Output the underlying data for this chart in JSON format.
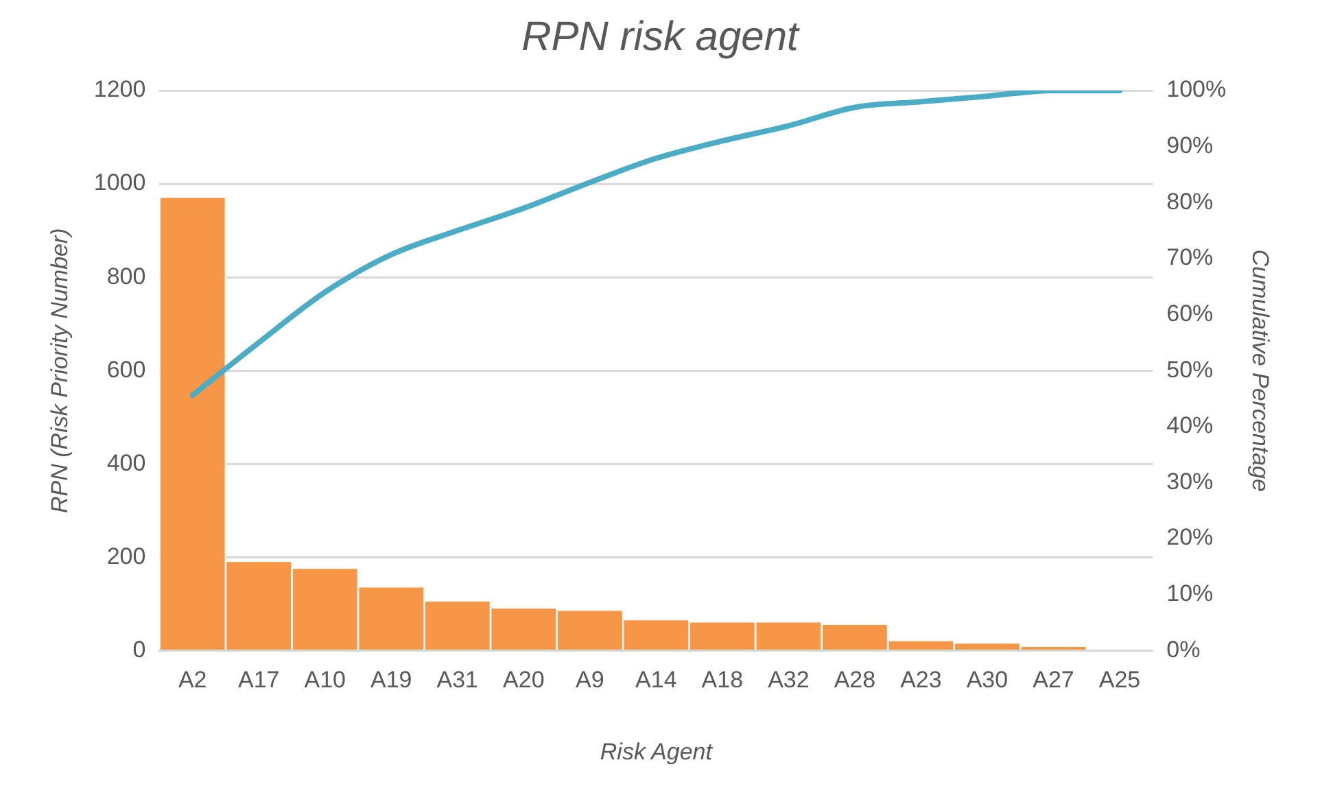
{
  "chart_data": {
    "type": "bar",
    "title": "RPN risk agent",
    "xlabel": "Risk Agent",
    "ylabel": "RPN (Risk Priority Number)",
    "y2label": "Cumulative Percentage",
    "categories": [
      "A2",
      "A17",
      "A10",
      "A19",
      "A31",
      "A20",
      "A9",
      "A14",
      "A18",
      "A32",
      "A28",
      "A23",
      "A30",
      "A27",
      "A25"
    ],
    "series": [
      {
        "color": "#f79646",
        "values": [
          970,
          190,
          175,
          135,
          105,
          90,
          85,
          65,
          60,
          60,
          55,
          20,
          15,
          8,
          0
        ]
      },
      {
        "type": "line",
        "axis": "y2",
        "color": "#4bacc6",
        "values": [
          45.6,
          55,
          64,
          70.7,
          75,
          79,
          83.6,
          87.9,
          91,
          93.7,
          97,
          98,
          99,
          100,
          100
        ]
      }
    ],
    "ylim": [
      0,
      1200
    ],
    "yticks": [
      0,
      200,
      400,
      600,
      800,
      1000,
      1200
    ],
    "y2lim": [
      0,
      100
    ],
    "y2ticks": [
      {
        "value": 0,
        "label": "0%"
      },
      {
        "value": 10,
        "label": "10%"
      },
      {
        "value": 20,
        "label": "20%"
      },
      {
        "value": 30,
        "label": "30%"
      },
      {
        "value": 40,
        "label": "40%"
      },
      {
        "value": 50,
        "label": "50%"
      },
      {
        "value": 60,
        "label": "60%"
      },
      {
        "value": 70,
        "label": "70%"
      },
      {
        "value": 80,
        "label": "80%"
      },
      {
        "value": 90,
        "label": "90%"
      },
      {
        "value": 100,
        "label": "100%"
      }
    ],
    "grid": "y",
    "legend": false,
    "marker": "none",
    "line_style": "solid"
  }
}
